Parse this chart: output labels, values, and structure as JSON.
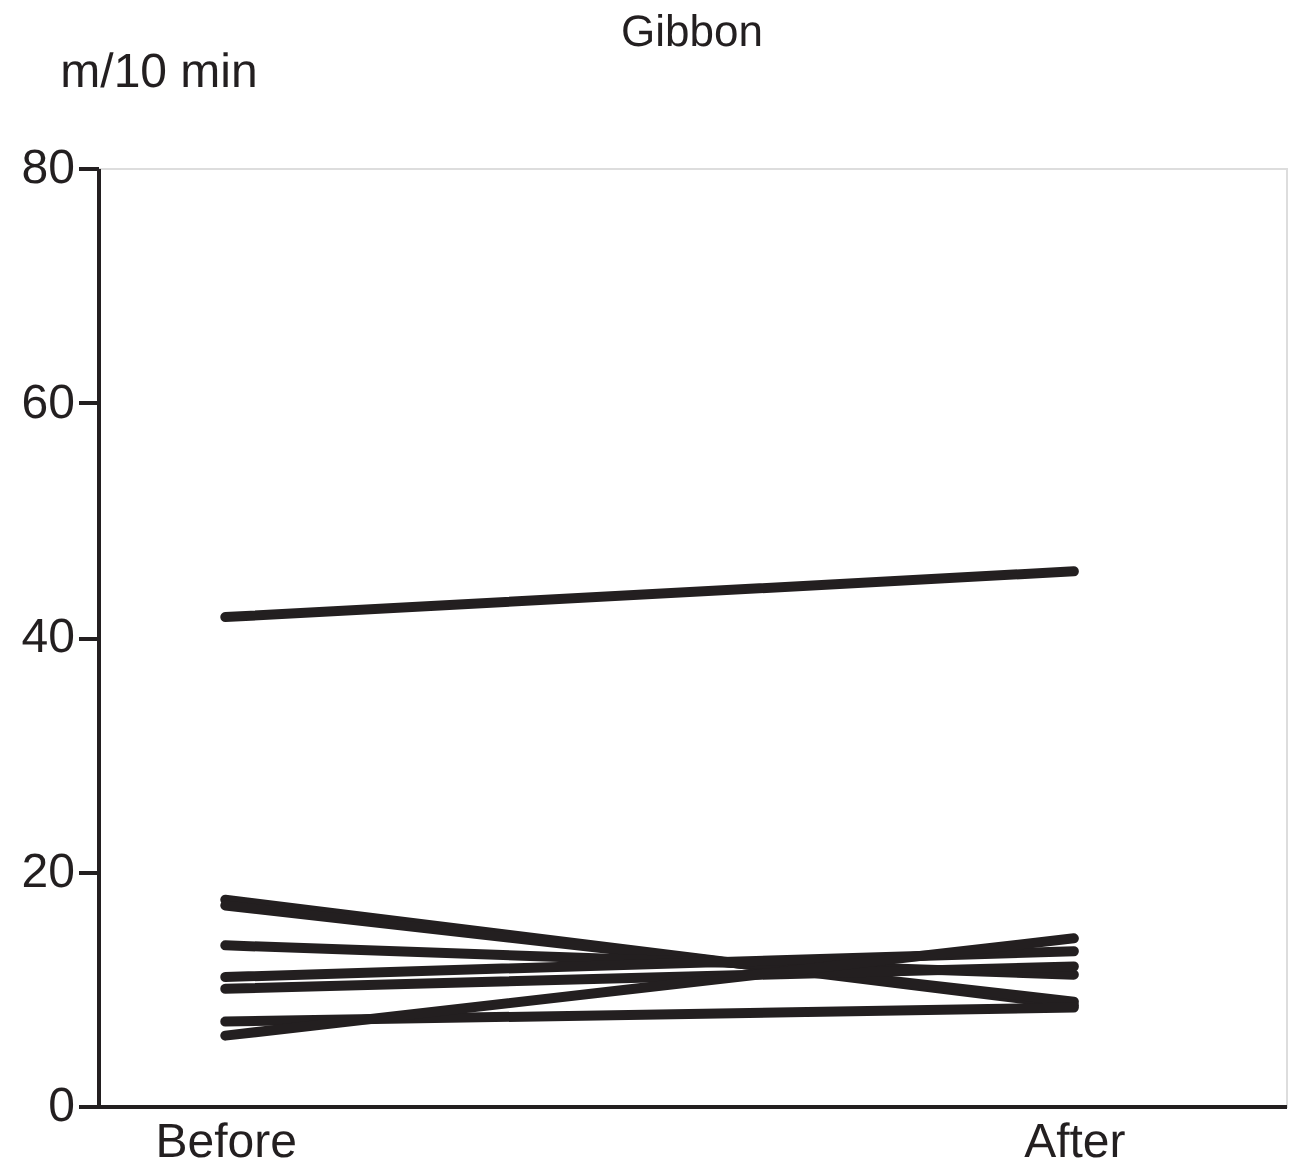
{
  "chart_data": {
    "type": "line",
    "title": "Gibbon",
    "ylabel": "m/10 min",
    "categories": [
      "Before",
      "After"
    ],
    "series": [
      {
        "color": "#231f20",
        "values": [
          41.7,
          45.6
        ]
      },
      {
        "color": "#231f20",
        "values": [
          17.6,
          8.6
        ]
      },
      {
        "color": "#231f20",
        "values": [
          17.1,
          8.9
        ]
      },
      {
        "color": "#231f20",
        "values": [
          13.7,
          11.2
        ]
      },
      {
        "color": "#231f20",
        "values": [
          11.0,
          13.2
        ]
      },
      {
        "color": "#231f20",
        "values": [
          10.0,
          11.9
        ]
      },
      {
        "color": "#231f20",
        "values": [
          7.2,
          8.4
        ]
      },
      {
        "color": "#231f20",
        "values": [
          6.0,
          14.3
        ]
      }
    ],
    "ylim": [
      0,
      80
    ],
    "yticks": [
      0,
      20,
      40,
      60,
      80
    ],
    "grid": false,
    "legend": false,
    "marker": "none",
    "line_style": "solid"
  }
}
